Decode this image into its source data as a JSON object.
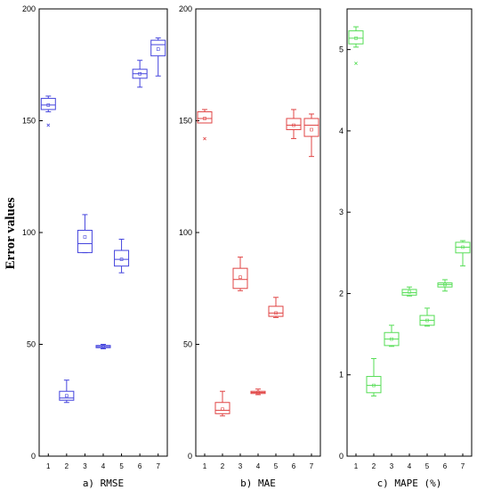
{
  "y_axis_title": "Error values",
  "chart_data": [
    {
      "type": "box",
      "panel_label": "a)  RMSE",
      "color": "#4444dd",
      "ylim": [
        0,
        200
      ],
      "yticks": [
        0,
        50,
        100,
        150,
        200
      ],
      "categories": [
        "1",
        "2",
        "3",
        "4",
        "5",
        "6",
        "7"
      ],
      "boxes": [
        {
          "whisker_low": 154,
          "q1": 155,
          "median": 157,
          "q3": 160,
          "whisker_high": 161,
          "mean": 157,
          "outliers": [
            148
          ]
        },
        {
          "whisker_low": 24,
          "q1": 25,
          "median": 26,
          "q3": 29,
          "whisker_high": 34,
          "mean": 27,
          "outliers": []
        },
        {
          "whisker_low": 91,
          "q1": 91,
          "median": 95,
          "q3": 101,
          "whisker_high": 108,
          "mean": 98,
          "outliers": []
        },
        {
          "whisker_low": 48,
          "q1": 48.5,
          "median": 49,
          "q3": 49.5,
          "whisker_high": 50,
          "mean": 49,
          "outliers": []
        },
        {
          "whisker_low": 82,
          "q1": 85,
          "median": 88,
          "q3": 92,
          "whisker_high": 97,
          "mean": 88,
          "outliers": []
        },
        {
          "whisker_low": 165,
          "q1": 169,
          "median": 171,
          "q3": 173,
          "whisker_high": 177,
          "mean": 171,
          "outliers": []
        },
        {
          "whisker_low": 170,
          "q1": 179,
          "median": 184,
          "q3": 186,
          "whisker_high": 187,
          "mean": 182,
          "outliers": []
        }
      ]
    },
    {
      "type": "box",
      "panel_label": "b)  MAE",
      "color": "#e04444",
      "ylim": [
        0,
        200
      ],
      "yticks": [
        0,
        50,
        100,
        150,
        200
      ],
      "categories": [
        "1",
        "2",
        "3",
        "4",
        "5",
        "6",
        "7"
      ],
      "boxes": [
        {
          "whisker_low": 149,
          "q1": 149,
          "median": 151,
          "q3": 154,
          "whisker_high": 155,
          "mean": 151,
          "outliers": [
            142
          ]
        },
        {
          "whisker_low": 18,
          "q1": 19,
          "median": 20.5,
          "q3": 24,
          "whisker_high": 29,
          "mean": 21,
          "outliers": []
        },
        {
          "whisker_low": 74,
          "q1": 75,
          "median": 79,
          "q3": 84,
          "whisker_high": 89,
          "mean": 80,
          "outliers": []
        },
        {
          "whisker_low": 27.5,
          "q1": 28,
          "median": 28.5,
          "q3": 29,
          "whisker_high": 30,
          "mean": 28.5,
          "outliers": []
        },
        {
          "whisker_low": 62,
          "q1": 62.5,
          "median": 64,
          "q3": 67,
          "whisker_high": 71,
          "mean": 64,
          "outliers": []
        },
        {
          "whisker_low": 142,
          "q1": 146,
          "median": 148,
          "q3": 151,
          "whisker_high": 155,
          "mean": 148,
          "outliers": []
        },
        {
          "whisker_low": 134,
          "q1": 143,
          "median": 148,
          "q3": 151,
          "whisker_high": 153,
          "mean": 146,
          "outliers": []
        }
      ]
    },
    {
      "type": "box",
      "panel_label": "c)  MAPE (%)",
      "color": "#55dd55",
      "ylim": [
        0,
        5.5
      ],
      "yticks": [
        0,
        1,
        2,
        3,
        4,
        5
      ],
      "categories": [
        "1",
        "2",
        "3",
        "4",
        "5",
        "6",
        "7"
      ],
      "boxes": [
        {
          "whisker_low": 5.03,
          "q1": 5.07,
          "median": 5.14,
          "q3": 5.23,
          "whisker_high": 5.28,
          "mean": 5.14,
          "outliers": [
            4.83
          ]
        },
        {
          "whisker_low": 0.74,
          "q1": 0.78,
          "median": 0.87,
          "q3": 0.98,
          "whisker_high": 1.2,
          "mean": 0.87,
          "outliers": []
        },
        {
          "whisker_low": 1.35,
          "q1": 1.36,
          "median": 1.44,
          "q3": 1.52,
          "whisker_high": 1.61,
          "mean": 1.44,
          "outliers": []
        },
        {
          "whisker_low": 1.97,
          "q1": 1.98,
          "median": 2.01,
          "q3": 2.05,
          "whisker_high": 2.08,
          "mean": 2.02,
          "outliers": []
        },
        {
          "whisker_low": 1.6,
          "q1": 1.61,
          "median": 1.67,
          "q3": 1.73,
          "whisker_high": 1.82,
          "mean": 1.67,
          "outliers": []
        },
        {
          "whisker_low": 2.03,
          "q1": 2.08,
          "median": 2.11,
          "q3": 2.13,
          "whisker_high": 2.17,
          "mean": 2.11,
          "outliers": []
        },
        {
          "whisker_low": 2.34,
          "q1": 2.5,
          "median": 2.57,
          "q3": 2.63,
          "whisker_high": 2.65,
          "mean": 2.57,
          "outliers": []
        }
      ]
    }
  ]
}
